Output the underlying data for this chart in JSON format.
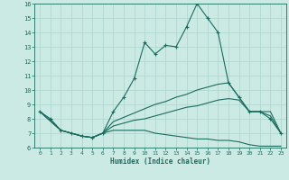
{
  "xlabel": "Humidex (Indice chaleur)",
  "bg_color": "#cceae4",
  "line_color": "#1a6b5e",
  "grid_color": "#aad4cc",
  "xlim": [
    -0.5,
    23.5
  ],
  "ylim": [
    6,
    16
  ],
  "xticks": [
    0,
    1,
    2,
    3,
    4,
    5,
    6,
    7,
    8,
    9,
    10,
    11,
    12,
    13,
    14,
    15,
    16,
    17,
    18,
    19,
    20,
    21,
    22,
    23
  ],
  "yticks": [
    6,
    7,
    8,
    9,
    10,
    11,
    12,
    13,
    14,
    15,
    16
  ],
  "line1_x": [
    0,
    1,
    2,
    3,
    4,
    5,
    6,
    7,
    8,
    9,
    10,
    11,
    12,
    13,
    14,
    15,
    16,
    17,
    18,
    19,
    20,
    21,
    22,
    23
  ],
  "line1_y": [
    8.5,
    8.0,
    7.2,
    7.0,
    6.8,
    6.7,
    7.0,
    8.5,
    9.5,
    10.8,
    13.3,
    12.5,
    13.1,
    13.0,
    14.4,
    16.0,
    15.0,
    14.0,
    10.5,
    9.5,
    8.5,
    8.5,
    8.0,
    7.0
  ],
  "line2_x": [
    0,
    2,
    3,
    4,
    5,
    6,
    7,
    8,
    9,
    10,
    11,
    12,
    13,
    14,
    15,
    16,
    17,
    18,
    19,
    20,
    21,
    22,
    23
  ],
  "line2_y": [
    8.5,
    7.2,
    7.0,
    6.8,
    6.7,
    7.0,
    7.8,
    8.1,
    8.4,
    8.7,
    9.0,
    9.2,
    9.5,
    9.7,
    10.0,
    10.2,
    10.4,
    10.5,
    9.5,
    8.5,
    8.5,
    8.5,
    7.0
  ],
  "line3_x": [
    0,
    2,
    3,
    4,
    5,
    6,
    7,
    8,
    9,
    10,
    11,
    12,
    13,
    14,
    15,
    16,
    17,
    18,
    19,
    20,
    21,
    22,
    23
  ],
  "line3_y": [
    8.5,
    7.2,
    7.0,
    6.8,
    6.7,
    7.0,
    7.5,
    7.7,
    7.9,
    8.0,
    8.2,
    8.4,
    8.6,
    8.8,
    8.9,
    9.1,
    9.3,
    9.4,
    9.3,
    8.5,
    8.5,
    8.2,
    7.0
  ],
  "line4_x": [
    0,
    2,
    3,
    4,
    5,
    6,
    7,
    8,
    9,
    10,
    11,
    12,
    13,
    14,
    15,
    16,
    17,
    18,
    19,
    20,
    21,
    22,
    23
  ],
  "line4_y": [
    8.5,
    7.2,
    7.0,
    6.8,
    6.7,
    7.0,
    7.2,
    7.2,
    7.2,
    7.2,
    7.0,
    6.9,
    6.8,
    6.7,
    6.6,
    6.6,
    6.5,
    6.5,
    6.4,
    6.2,
    6.1,
    6.1,
    6.1
  ]
}
